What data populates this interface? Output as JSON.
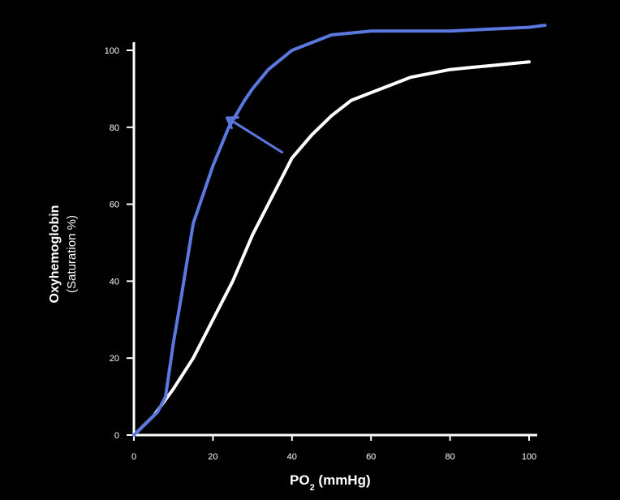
{
  "chart_data": {
    "type": "line",
    "title": "",
    "xlabel": {
      "main": "PO",
      "subscript": "2",
      "unit": " (mmHg)"
    },
    "ylabel": {
      "line1": "Oxyhemoglobin",
      "line2": "(Saturation %)"
    },
    "xlim": [
      0,
      100
    ],
    "ylim": [
      0,
      100
    ],
    "grid": false,
    "xticks": [
      "0",
      "20",
      "40",
      "60",
      "80",
      "100"
    ],
    "yticks": [
      "0",
      "20",
      "40",
      "60",
      "80",
      "100"
    ],
    "series": [
      {
        "name": "shifted-left-curve",
        "color": "#5B78E0",
        "x": [
          0,
          3,
          6,
          8,
          10,
          12,
          15,
          18,
          20,
          24,
          28,
          30,
          34,
          40,
          50,
          60,
          70,
          80,
          90,
          100,
          104
        ],
        "y": [
          0,
          3,
          6,
          10,
          24,
          36,
          55,
          64,
          70,
          80,
          87,
          90,
          95,
          100,
          104,
          105,
          105,
          105,
          105.5,
          106,
          106.5
        ]
      },
      {
        "name": "normal-curve",
        "color": "#FFFFFF",
        "x": [
          0,
          5,
          10,
          15,
          20,
          25,
          30,
          35,
          40,
          45,
          50,
          55,
          60,
          65,
          70,
          75,
          80,
          85,
          90,
          95,
          100
        ],
        "y": [
          0,
          5,
          12,
          20,
          30,
          40,
          52,
          62,
          72,
          78,
          83,
          87,
          89,
          91,
          93,
          94,
          95,
          95.5,
          96,
          96.5,
          97
        ]
      }
    ],
    "annotations": [
      {
        "type": "arrow",
        "color": "#5B78E0",
        "from": [
          37.5,
          73.5
        ],
        "to": [
          23.5,
          82.5
        ]
      }
    ]
  }
}
